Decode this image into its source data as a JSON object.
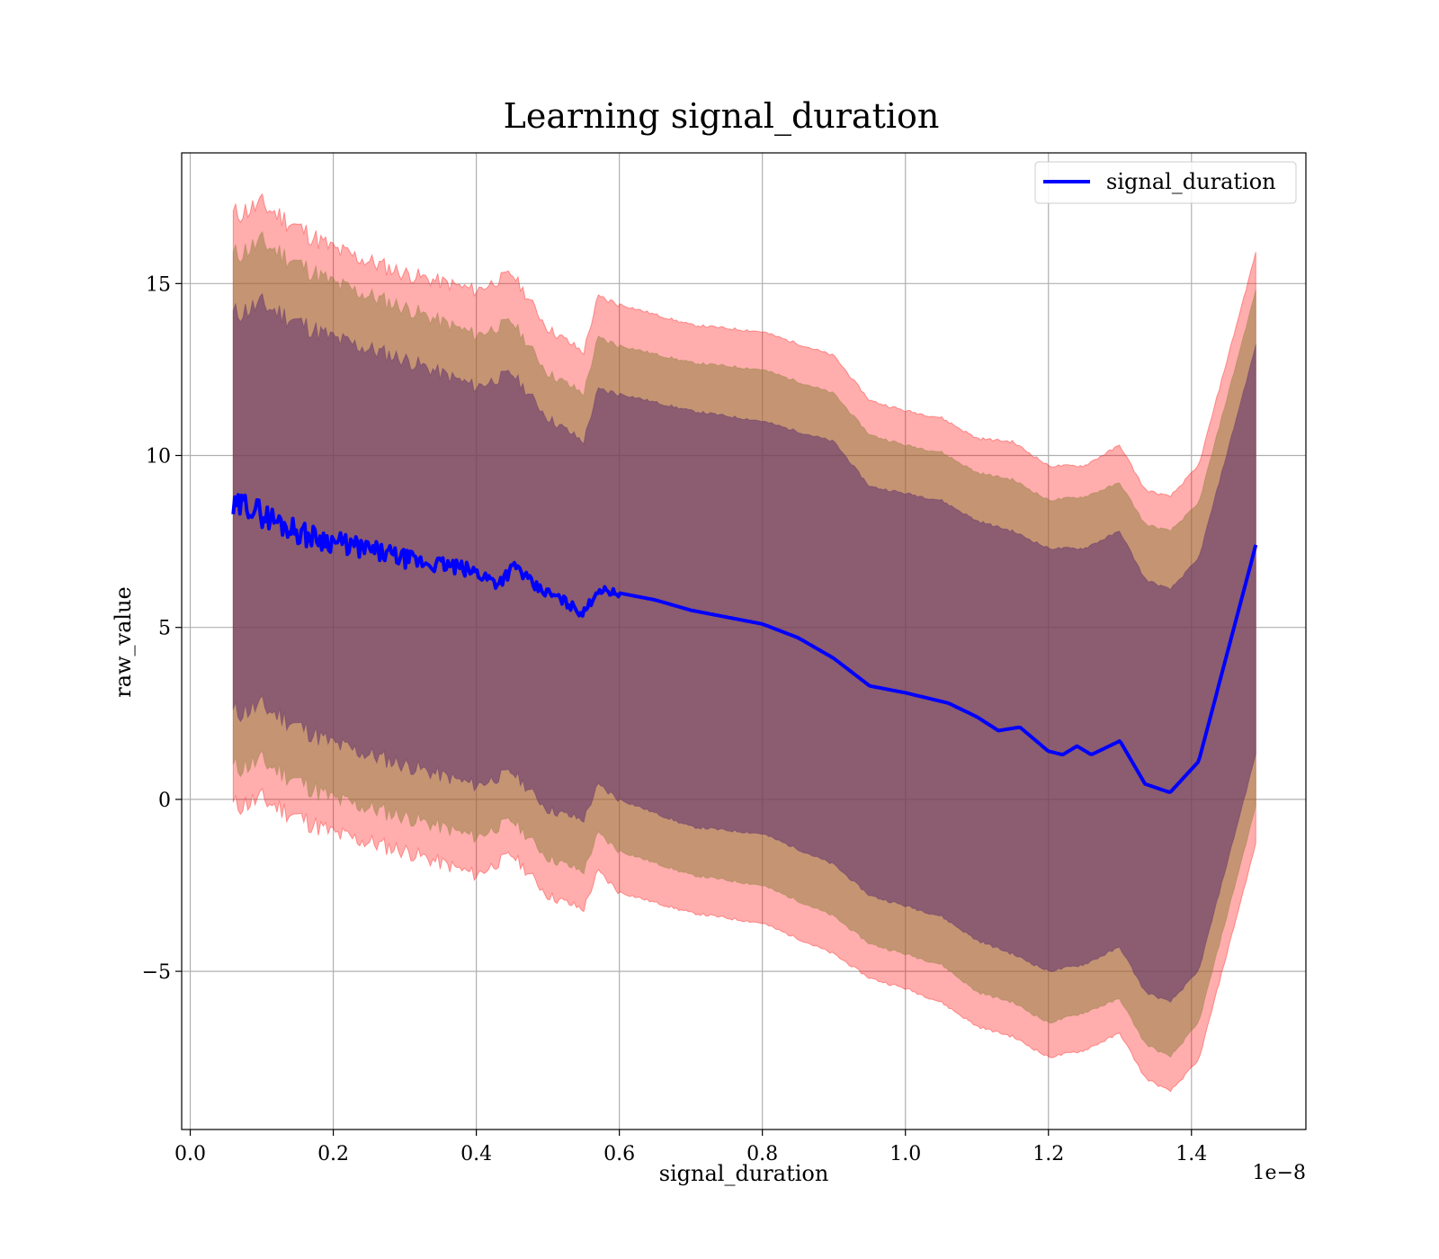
{
  "chart_data": {
    "type": "line",
    "title": "Learning signal_duration",
    "xlabel": "signal_duration",
    "ylabel": "raw_value",
    "x_offset_text": "1e−8",
    "xlim": [
      -0.012,
      1.56
    ],
    "ylim": [
      -9.6,
      18.8
    ],
    "x_ticks": [
      0.0,
      0.2,
      0.4,
      0.6,
      0.8,
      1.0,
      1.2,
      1.4
    ],
    "x_tick_labels": [
      "0.0",
      "0.2",
      "0.4",
      "0.6",
      "0.8",
      "1.0",
      "1.2",
      "1.4"
    ],
    "y_ticks": [
      -5,
      0,
      5,
      10,
      15
    ],
    "y_tick_labels": [
      "−5",
      "0",
      "5",
      "10",
      "15"
    ],
    "grid": true,
    "legend": {
      "position": "upper-right",
      "entries": [
        "signal_duration"
      ]
    },
    "colors": {
      "line": "#0000ff",
      "band_outer": "#ff0000",
      "band_middle": "#8b7d3a",
      "band_inner": "#5c2e6e"
    },
    "series": [
      {
        "name": "signal_duration",
        "x": [
          0.06,
          0.08,
          0.1,
          0.13,
          0.16,
          0.2,
          0.24,
          0.28,
          0.32,
          0.36,
          0.4,
          0.43,
          0.455,
          0.48,
          0.52,
          0.55,
          0.57,
          0.6,
          0.65,
          0.7,
          0.75,
          0.8,
          0.85,
          0.9,
          0.95,
          1.0,
          1.03,
          1.06,
          1.1,
          1.13,
          1.16,
          1.2,
          1.22,
          1.24,
          1.26,
          1.3,
          1.335,
          1.37,
          1.41,
          1.49
        ],
        "y": [
          8.4,
          8.6,
          8.3,
          8.0,
          7.7,
          7.5,
          7.3,
          7.1,
          6.9,
          6.8,
          6.6,
          6.3,
          6.8,
          6.2,
          5.8,
          5.4,
          6.1,
          6.0,
          5.8,
          5.5,
          5.3,
          5.1,
          4.7,
          4.1,
          3.3,
          3.1,
          2.95,
          2.8,
          2.4,
          2.0,
          2.1,
          1.4,
          1.3,
          1.55,
          1.3,
          1.7,
          0.45,
          0.2,
          1.1,
          7.4
        ]
      }
    ],
    "bands": [
      {
        "name": "outer",
        "x": [
          0.06,
          0.1,
          0.2,
          0.3,
          0.4,
          0.45,
          0.5,
          0.55,
          0.57,
          0.6,
          0.7,
          0.8,
          0.9,
          0.95,
          1.0,
          1.05,
          1.1,
          1.15,
          1.2,
          1.25,
          1.3,
          1.335,
          1.37,
          1.41,
          1.49
        ],
        "upper": [
          17.0,
          17.3,
          16.0,
          15.3,
          14.8,
          15.3,
          13.7,
          13.0,
          14.6,
          14.4,
          13.8,
          13.6,
          12.9,
          11.6,
          11.3,
          11.1,
          10.5,
          10.4,
          9.7,
          9.7,
          10.3,
          9.0,
          8.8,
          9.7,
          15.9
        ],
        "lower": [
          -0.2,
          0.0,
          -1.0,
          -1.5,
          -2.2,
          -1.6,
          -2.8,
          -3.2,
          -2.1,
          -2.7,
          -3.3,
          -3.6,
          -4.5,
          -5.2,
          -5.5,
          -5.9,
          -6.6,
          -6.9,
          -7.5,
          -7.3,
          -6.8,
          -8.1,
          -8.5,
          -7.6,
          -1.3
        ]
      },
      {
        "name": "middle",
        "x": [
          0.06,
          0.1,
          0.2,
          0.3,
          0.4,
          0.45,
          0.5,
          0.55,
          0.57,
          0.6,
          0.7,
          0.8,
          0.9,
          0.95,
          1.0,
          1.05,
          1.1,
          1.15,
          1.2,
          1.25,
          1.3,
          1.335,
          1.37,
          1.41,
          1.49
        ],
        "upper": [
          15.8,
          16.2,
          15.0,
          14.3,
          13.5,
          13.9,
          12.4,
          11.8,
          13.4,
          13.2,
          12.7,
          12.5,
          11.8,
          10.6,
          10.3,
          10.1,
          9.5,
          9.3,
          8.7,
          8.8,
          9.2,
          8.0,
          7.8,
          8.6,
          14.8
        ],
        "lower": [
          0.9,
          1.1,
          0.0,
          -0.5,
          -1.1,
          -0.6,
          -1.7,
          -2.1,
          -1.0,
          -1.5,
          -2.2,
          -2.5,
          -3.4,
          -4.2,
          -4.5,
          -4.8,
          -5.6,
          -5.9,
          -6.5,
          -6.2,
          -5.8,
          -7.1,
          -7.5,
          -6.5,
          -0.2
        ]
      },
      {
        "name": "inner",
        "x": [
          0.06,
          0.1,
          0.2,
          0.3,
          0.4,
          0.45,
          0.5,
          0.55,
          0.57,
          0.6,
          0.7,
          0.8,
          0.9,
          0.95,
          1.0,
          1.05,
          1.1,
          1.15,
          1.2,
          1.25,
          1.3,
          1.335,
          1.37,
          1.41,
          1.49
        ],
        "upper": [
          14.1,
          14.4,
          13.4,
          12.8,
          12.0,
          12.4,
          11.1,
          10.4,
          11.9,
          11.8,
          11.3,
          11.0,
          10.4,
          9.1,
          8.9,
          8.7,
          8.1,
          7.8,
          7.3,
          7.3,
          7.8,
          6.4,
          6.1,
          7.0,
          13.2
        ],
        "lower": [
          2.5,
          2.7,
          1.6,
          1.0,
          0.4,
          0.8,
          -0.3,
          -0.6,
          0.4,
          0.0,
          -0.8,
          -1.0,
          -1.9,
          -2.8,
          -3.1,
          -3.4,
          -4.1,
          -4.5,
          -5.0,
          -4.8,
          -4.3,
          -5.6,
          -5.9,
          -5.0,
          1.3
        ]
      }
    ]
  }
}
